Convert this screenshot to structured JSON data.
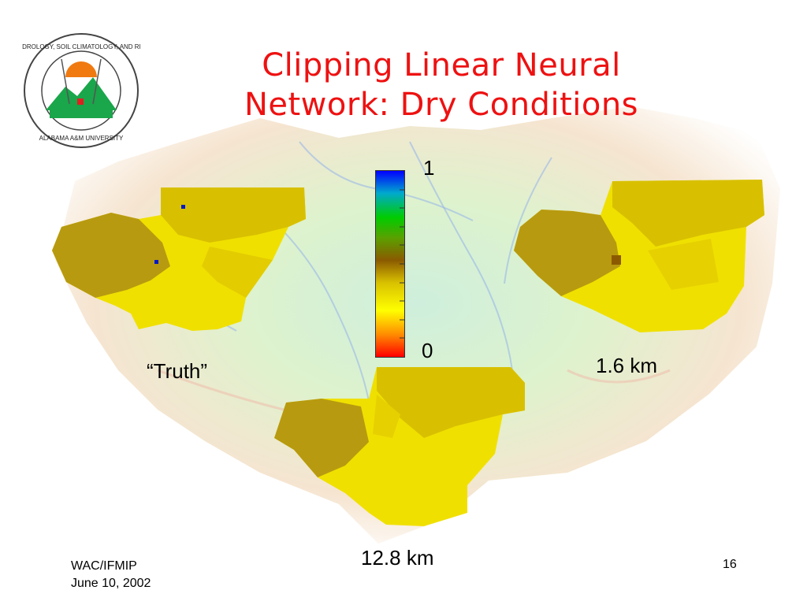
{
  "slide": {
    "title_line1": "Clipping Linear Neural",
    "title_line2": "Network: Dry Conditions",
    "labels": {
      "truth": "“Truth”",
      "res_fine": "1.6 km",
      "res_coarse": "12.8 km"
    },
    "colorbar": {
      "max_label": "1",
      "min_label": "0",
      "stops": [
        "#ff0000",
        "#ff8c00",
        "#ffff00",
        "#8b5a00",
        "#00cc00",
        "#00aacc",
        "#0000ff"
      ]
    },
    "footer": {
      "line1": "WAC/IFMIP",
      "line2": "June 10, 2002",
      "page_number": "16"
    },
    "logo": {
      "ring_text_top": "CENTER FOR HYDROLOGY, SOIL CLIMATOLOGY, AND REMOTE SENSING",
      "ring_text_bottom": "ALABAMA A&M UNIVERSITY"
    }
  },
  "colors": {
    "title": "#ee1111",
    "map_dark": "#b89a10",
    "map_mid": "#d8c000",
    "map_light": "#f0e000",
    "logo_green": "#1aa64a",
    "logo_orange": "#f07a10"
  }
}
